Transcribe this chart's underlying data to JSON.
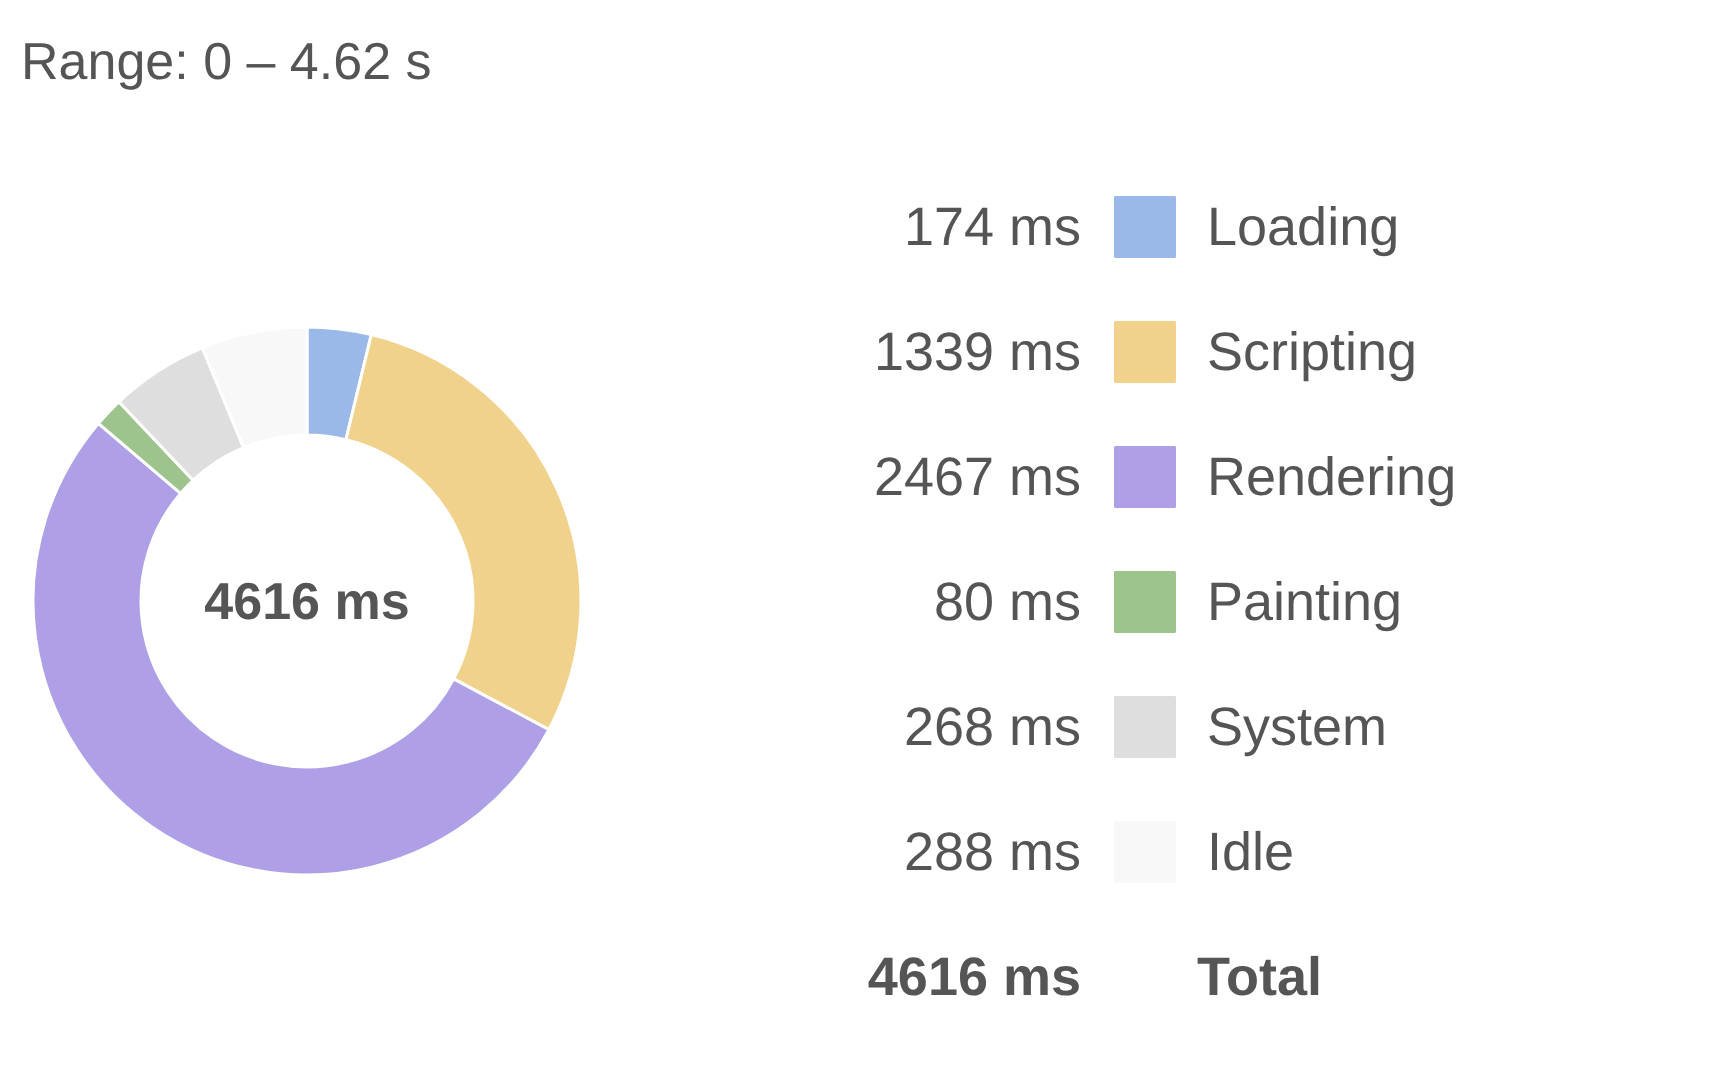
{
  "chart_data": {
    "type": "donut",
    "title": "Range: 0 – 4.62 s",
    "categories": [
      "Loading",
      "Scripting",
      "Rendering",
      "Painting",
      "System",
      "Idle"
    ],
    "values": [
      174,
      1339,
      2467,
      80,
      268,
      288
    ],
    "colors": [
      "#9ab8e8",
      "#f0d28c",
      "#ae9fe6",
      "#9ec48e",
      "#dedede",
      "#f8f8f8"
    ],
    "value_labels": [
      "174 ms",
      "1339 ms",
      "2467 ms",
      "80 ms",
      "268 ms",
      "288 ms"
    ],
    "legend": "right",
    "annotations": [
      "4616 ms",
      "4616 ms",
      "Total"
    ]
  }
}
